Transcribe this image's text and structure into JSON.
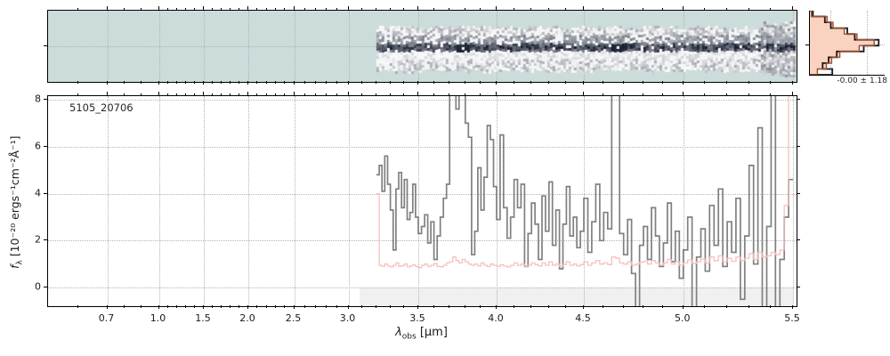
{
  "figure": {
    "background": "#ffffff",
    "annotation_label": "5105_20706"
  },
  "axes": {
    "xlabel": {
      "symbol": "λ",
      "subscript": "obs",
      "units": " [μm]"
    },
    "ylabel": {
      "symbol": "f",
      "subscript": "λ",
      "units": " [10⁻²⁰ ergs⁻¹cm⁻²Å⁻¹]"
    },
    "x_major_ticks": {
      "labels": [
        "0.7",
        "1.0",
        "1.5",
        "2.0",
        "2.5",
        "3.0",
        "3.5",
        "4.0",
        "4.5",
        "5.0",
        "5.5"
      ],
      "values": [
        0.7,
        1.0,
        1.5,
        2.0,
        2.5,
        3.0,
        3.5,
        4.0,
        4.5,
        5.0,
        5.5
      ]
    },
    "x_minor_step": 0.1,
    "x_minor_range": [
      0.6,
      5.5
    ],
    "x_scale_anchors": [
      [
        0.5,
        0.0
      ],
      [
        0.6,
        0.0404
      ],
      [
        0.7,
        0.0791
      ],
      [
        1.0,
        0.1481
      ],
      [
        1.5,
        0.2081
      ],
      [
        2.0,
        0.2675
      ],
      [
        2.5,
        0.3288
      ],
      [
        3.0,
        0.4013
      ],
      [
        3.5,
        0.4947
      ],
      [
        4.0,
        0.5993
      ],
      [
        4.5,
        0.7158
      ],
      [
        5.0,
        0.8487
      ],
      [
        5.5,
        0.9953
      ],
      [
        5.52,
        1.0
      ]
    ],
    "y_ticks": [
      0,
      2,
      4,
      6,
      8
    ],
    "ylim": [
      -0.79,
      8.15
    ]
  },
  "colors": {
    "flux_line": "#808080",
    "error_line": "#f5b9b6",
    "grid": "#b3b3b3",
    "spine": "#000000",
    "text": "#1a1a1a",
    "shade": "#f0f0f0",
    "teal_background": "#cbdcdb",
    "noise_dark": "#141a2e",
    "hist_data": "#1a1a1a",
    "hist_model": "#9c4f2e",
    "hist_fill": "#f9d2c0"
  },
  "chart_data": [
    {
      "id": "spec2d",
      "type": "heatmap",
      "description": "2D rectified spectrum strip; pale teal masked background with noisy grayscale trace",
      "wavelength_range_um": [
        0.5,
        5.52
      ],
      "data_start_um": 3.2,
      "data_end_um": 5.49,
      "trace_center_frac": 0.51,
      "hotspots_um": [
        3.78,
        4.67
      ],
      "noise_seed": 987654321
    },
    {
      "id": "spec1d",
      "type": "line",
      "title": "5105_20706",
      "xlabel": "λobs [μm]",
      "ylabel": "fλ [10⁻²⁰ ergs⁻¹cm⁻²Å⁻¹]",
      "xlim": [
        0.5,
        5.52
      ],
      "ylim": [
        -0.79,
        8.15
      ],
      "grid": true,
      "x_start": 3.21,
      "x_step": 0.02,
      "shaded_region": {
        "x_start_um": 3.08,
        "x_end_um": 5.5,
        "y_below": 0
      },
      "series": [
        {
          "name": "flux",
          "style": "step-mid",
          "color": "#808080",
          "values": [
            4.8,
            5.2,
            4.1,
            5.6,
            4.4,
            3.3,
            1.6,
            4.2,
            4.9,
            3.4,
            4.6,
            2.9,
            3.2,
            4.4,
            3.0,
            2.3,
            2.6,
            3.1,
            1.9,
            2.8,
            1.2,
            2.2,
            3.0,
            3.8,
            4.4,
            8.6,
            8.6,
            7.6,
            8.6,
            8.6,
            7.0,
            6.4,
            1.4,
            2.4,
            5.1,
            3.3,
            4.7,
            6.9,
            6.3,
            4.3,
            2.9,
            6.5,
            3.4,
            2.1,
            3.0,
            4.6,
            3.4,
            4.4,
            0.9,
            2.3,
            3.6,
            2.7,
            1.2,
            3.9,
            2.4,
            4.5,
            1.8,
            3.3,
            0.8,
            2.7,
            4.3,
            2.2,
            3.0,
            1.7,
            2.4,
            3.8,
            1.5,
            2.8,
            4.4,
            2.0,
            3.2,
            2.5,
            8.6,
            8.6,
            2.3,
            1.4,
            2.9,
            0.6,
            -0.9,
            1.8,
            2.6,
            1.2,
            3.4,
            2.2,
            0.9,
            1.9,
            3.6,
            1.1,
            2.4,
            0.4,
            1.6,
            3.0,
            -0.9,
            1.3,
            2.5,
            0.7,
            3.5,
            1.8,
            4.2,
            0.9,
            2.8,
            1.5,
            3.8,
            -0.5,
            2.2,
            5.2,
            1.0,
            6.8,
            -0.9,
            2.6,
            8.3,
            -0.9,
            1.2,
            3.0,
            4.6
          ]
        },
        {
          "name": "error",
          "style": "step-mid",
          "color": "#f5b9b6",
          "values": [
            4.0,
            0.95,
            0.9,
            1.0,
            0.92,
            0.88,
            0.95,
            1.05,
            0.9,
            0.93,
            1.0,
            0.88,
            0.92,
            0.97,
            0.9,
            0.85,
            0.95,
            1.0,
            0.9,
            0.95,
            1.02,
            0.9,
            0.88,
            0.95,
            1.05,
            1.1,
            1.3,
            1.15,
            1.05,
            1.2,
            1.1,
            1.0,
            0.95,
            1.0,
            0.92,
            1.05,
            0.95,
            0.9,
            1.0,
            0.95,
            0.9,
            0.97,
            0.92,
            0.88,
            0.95,
            1.05,
            0.95,
            1.0,
            0.9,
            0.95,
            1.05,
            0.98,
            0.92,
            1.05,
            0.95,
            1.1,
            0.95,
            1.0,
            0.9,
            0.98,
            1.1,
            0.95,
            1.0,
            0.92,
            0.98,
            1.1,
            0.95,
            1.05,
            1.15,
            1.0,
            1.05,
            0.98,
            1.3,
            1.25,
            1.05,
            1.0,
            1.1,
            0.95,
            1.0,
            1.08,
            1.12,
            1.0,
            1.15,
            1.05,
            0.95,
            1.05,
            1.2,
            1.0,
            1.1,
            0.95,
            1.05,
            1.18,
            1.02,
            1.1,
            1.22,
            1.05,
            1.3,
            1.15,
            1.35,
            1.1,
            1.25,
            1.12,
            1.3,
            1.15,
            1.25,
            1.45,
            1.2,
            1.5,
            1.3,
            1.35,
            1.5,
            1.4,
            1.6,
            3.5,
            8.5
          ]
        }
      ]
    },
    {
      "id": "noise-histogram",
      "type": "bar",
      "orientation": "horizontal",
      "annotation": "-0.00 ± 1.18",
      "bins_top_to_bottom": {
        "data": [
          0.04,
          0.2,
          0.28,
          0.5,
          0.6,
          0.92,
          0.72,
          0.36,
          0.25,
          0.17,
          0.3
        ],
        "model": [
          0.02,
          0.23,
          0.31,
          0.46,
          0.63,
          0.86,
          0.66,
          0.4,
          0.29,
          0.22,
          0.1
        ]
      },
      "gridline_fracs_x": [
        0.274,
        0.762
      ],
      "gridline_frac_y": 0.528
    }
  ]
}
